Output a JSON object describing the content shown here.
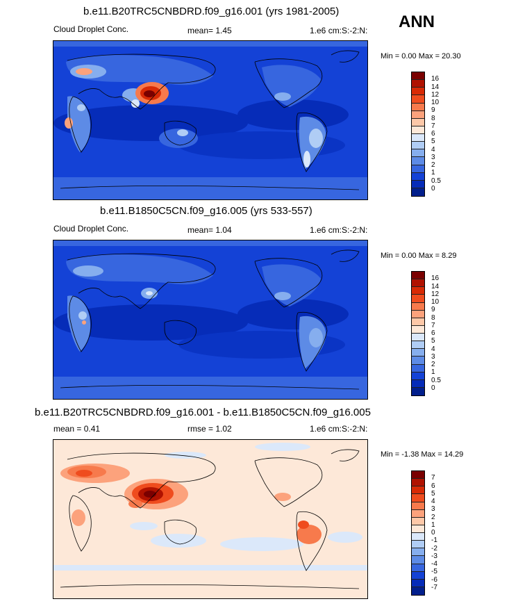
{
  "season": "ANN",
  "panels": [
    {
      "title": "b.e11.B20TRC5CNBDRD.f09_g16.001 (yrs 1981-2005)",
      "left_label": "Cloud Droplet Conc.",
      "center_label": "mean=   1.45",
      "right_label": "1.e6 cm:S:-2:N:",
      "minmax": "Min =   0.00 Max =  20.30",
      "colorbar": {
        "levels": [
          "16",
          "14",
          "12",
          "10",
          "9",
          "8",
          "7",
          "6",
          "5",
          "4",
          "3",
          "2",
          "1",
          "0.5",
          "0"
        ],
        "colors": [
          "#7a0000",
          "#b01200",
          "#d82a05",
          "#ef4c1e",
          "#f77a4c",
          "#fca27c",
          "#fdc8a8",
          "#fde8d8",
          "#dbe8fa",
          "#b0cdf5",
          "#86aeee",
          "#5d8be6",
          "#3766df",
          "#1442d6",
          "#062cb8",
          "#021f8c"
        ]
      }
    },
    {
      "title": "b.e11.B1850C5CN.f09_g16.005 (yrs 533-557)",
      "left_label": "Cloud Droplet Conc.",
      "center_label": "mean=   1.04",
      "right_label": "1.e6 cm:S:-2:N:",
      "minmax": "Min =   0.00 Max =   8.29",
      "colorbar": {
        "levels": [
          "16",
          "14",
          "12",
          "10",
          "9",
          "8",
          "7",
          "6",
          "5",
          "4",
          "3",
          "2",
          "1",
          "0.5",
          "0"
        ],
        "colors": [
          "#7a0000",
          "#b01200",
          "#d82a05",
          "#ef4c1e",
          "#f77a4c",
          "#fca27c",
          "#fdc8a8",
          "#fde8d8",
          "#dbe8fa",
          "#b0cdf5",
          "#86aeee",
          "#5d8be6",
          "#3766df",
          "#1442d6",
          "#062cb8",
          "#021f8c"
        ]
      }
    },
    {
      "title": "b.e11.B20TRC5CNBDRD.f09_g16.001 - b.e11.B1850C5CN.f09_g16.005",
      "left_label": "mean =   0.41",
      "center_label": "rmse =   1.02",
      "right_label": "1.e6 cm:S:-2:N:",
      "minmax": "Min =  -1.38 Max =  14.29",
      "colorbar": {
        "levels": [
          "7",
          "6",
          "5",
          "4",
          "3",
          "2",
          "1",
          "0",
          "-1",
          "-2",
          "-3",
          "-4",
          "-5",
          "-6",
          "-7"
        ],
        "colors": [
          "#7a0000",
          "#b01200",
          "#d82a05",
          "#ef4c1e",
          "#f77a4c",
          "#fca27c",
          "#fdc8a8",
          "#fde8d8",
          "#dbe8fa",
          "#b0cdf5",
          "#86aeee",
          "#5d8be6",
          "#3766df",
          "#1442d6",
          "#062cb8",
          "#021f8c"
        ]
      }
    }
  ]
}
